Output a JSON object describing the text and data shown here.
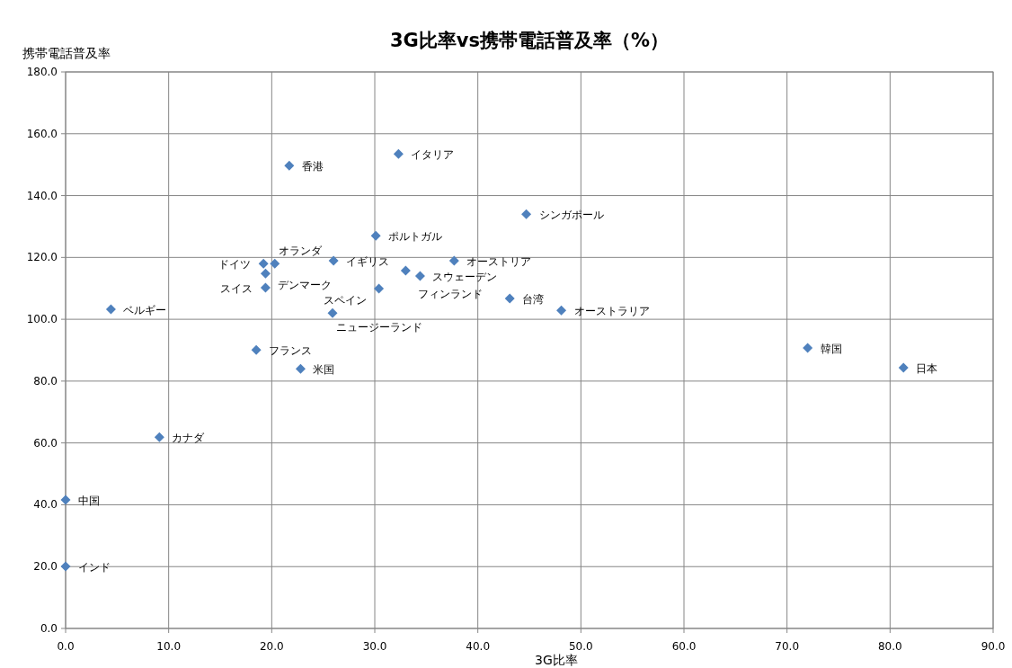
{
  "chart_data": {
    "type": "scatter",
    "title": "3G比率vs携帯電話普及率（%）",
    "xlabel": "3G比率",
    "ylabel": "携帯電話普及率",
    "xlim": [
      0,
      90
    ],
    "xticks": [
      {
        "value": 0,
        "label": "0.0"
      },
      {
        "value": 10,
        "label": "10.0"
      },
      {
        "value": 20,
        "label": "20.0"
      },
      {
        "value": 30,
        "label": "30.0"
      },
      {
        "value": 40,
        "label": "40.0"
      },
      {
        "value": 50,
        "label": "50.0"
      },
      {
        "value": 60,
        "label": "60.0"
      },
      {
        "value": 70,
        "label": "70.0"
      },
      {
        "value": 80,
        "label": "80.0"
      },
      {
        "value": 90,
        "label": "90.0"
      }
    ],
    "ylim": [
      0,
      180
    ],
    "yticks": [
      {
        "value": 0,
        "label": "0.0"
      },
      {
        "value": 20,
        "label": "20.0"
      },
      {
        "value": 40,
        "label": "40.0"
      },
      {
        "value": 60,
        "label": "60.0"
      },
      {
        "value": 80,
        "label": "80.0"
      },
      {
        "value": 100,
        "label": "100.0"
      },
      {
        "value": 120,
        "label": "120.0"
      },
      {
        "value": 140,
        "label": "140.0"
      },
      {
        "value": 160,
        "label": "160.0"
      },
      {
        "value": 180,
        "label": "180.0"
      }
    ],
    "grid": true,
    "marker": "diamond",
    "series": [
      {
        "color": "#4f81bd",
        "x": [
          21.7,
          32.3,
          44.7,
          30.1,
          20.3,
          19.2,
          26.0,
          37.7,
          19.4,
          33.0,
          34.4,
          19.4,
          30.4,
          43.1,
          4.4,
          25.9,
          48.1,
          72.0,
          18.5,
          22.8,
          81.3,
          9.1,
          0,
          0
        ],
        "values": [
          149.7,
          153.5,
          134.0,
          127.0,
          118.0,
          118.0,
          118.9,
          118.9,
          114.8,
          115.7,
          114.0,
          110.2,
          109.9,
          106.7,
          103.2,
          102.0,
          102.9,
          90.7,
          90.1,
          84.0,
          84.3,
          61.9,
          41.6,
          20.1
        ]
      }
    ],
    "annotations": [
      {
        "text": "香港",
        "x": 21.7,
        "y": 149.7
      },
      {
        "text": "イタリア",
        "x": 32.3,
        "y": 153.5
      },
      {
        "text": "シンガポール",
        "x": 44.7,
        "y": 134.0
      },
      {
        "text": "ポルトガル",
        "x": 30.1,
        "y": 127.0
      },
      {
        "text": "オランダ",
        "x": 20.3,
        "y": 118.0
      },
      {
        "text": "ドイツ",
        "x": 19.2,
        "y": 118.0
      },
      {
        "text": "イギリス",
        "x": 26.0,
        "y": 118.9
      },
      {
        "text": "オーストリア",
        "x": 37.7,
        "y": 118.9
      },
      {
        "text": "デンマーク",
        "x": 19.4,
        "y": 114.8
      },
      {
        "text": "フィンランド",
        "x": 33.0,
        "y": 115.7
      },
      {
        "text": "スウェーデン",
        "x": 34.4,
        "y": 114.0
      },
      {
        "text": "スイス",
        "x": 19.4,
        "y": 110.2
      },
      {
        "text": "スペイン",
        "x": 30.4,
        "y": 109.9
      },
      {
        "text": "台湾",
        "x": 43.1,
        "y": 106.7
      },
      {
        "text": "ベルギー",
        "x": 4.4,
        "y": 103.2
      },
      {
        "text": "ニュージーランド",
        "x": 25.9,
        "y": 102.0
      },
      {
        "text": "オーストラリア",
        "x": 48.1,
        "y": 102.9
      },
      {
        "text": "韓国",
        "x": 72.0,
        "y": 90.7
      },
      {
        "text": "フランス",
        "x": 18.5,
        "y": 90.1
      },
      {
        "text": "米国",
        "x": 22.8,
        "y": 84.0
      },
      {
        "text": "日本",
        "x": 81.3,
        "y": 84.3
      },
      {
        "text": "カナダ",
        "x": 9.1,
        "y": 61.9
      },
      {
        "text": "中国",
        "x": 0,
        "y": 41.6
      },
      {
        "text": "インド",
        "x": 0,
        "y": 20.1
      }
    ]
  }
}
